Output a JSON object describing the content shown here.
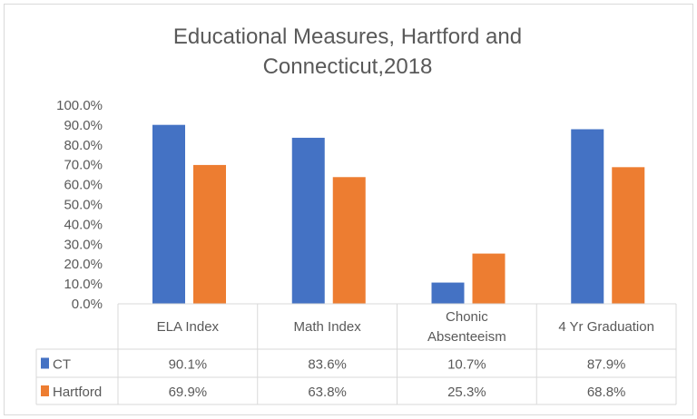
{
  "chart_data": {
    "type": "bar",
    "title": "Educational Measures, Hartford and Connecticut,2018",
    "title_lines": [
      "Educational Measures, Hartford and",
      "Connecticut,2018"
    ],
    "categories": [
      [
        "ELA Index"
      ],
      [
        "Math Index"
      ],
      [
        "Chonic",
        "Absenteeism"
      ],
      [
        "4 Yr Graduation"
      ]
    ],
    "series": [
      {
        "name": "CT",
        "color": "#4472C4",
        "values": [
          90.1,
          83.6,
          10.7,
          87.9
        ],
        "labels": [
          "90.1%",
          "83.6%",
          "10.7%",
          "87.9%"
        ]
      },
      {
        "name": "Hartford",
        "color": "#ED7D31",
        "values": [
          69.9,
          63.8,
          25.3,
          68.8
        ],
        "labels": [
          "69.9%",
          "63.8%",
          "25.3%",
          "68.8%"
        ]
      }
    ],
    "yticks": [
      "0.0%",
      "10.0%",
      "20.0%",
      "30.0%",
      "40.0%",
      "50.0%",
      "60.0%",
      "70.0%",
      "80.0%",
      "90.0%",
      "100.0%"
    ],
    "ylim": [
      0,
      100
    ],
    "grid": false,
    "legend": "data-table"
  }
}
